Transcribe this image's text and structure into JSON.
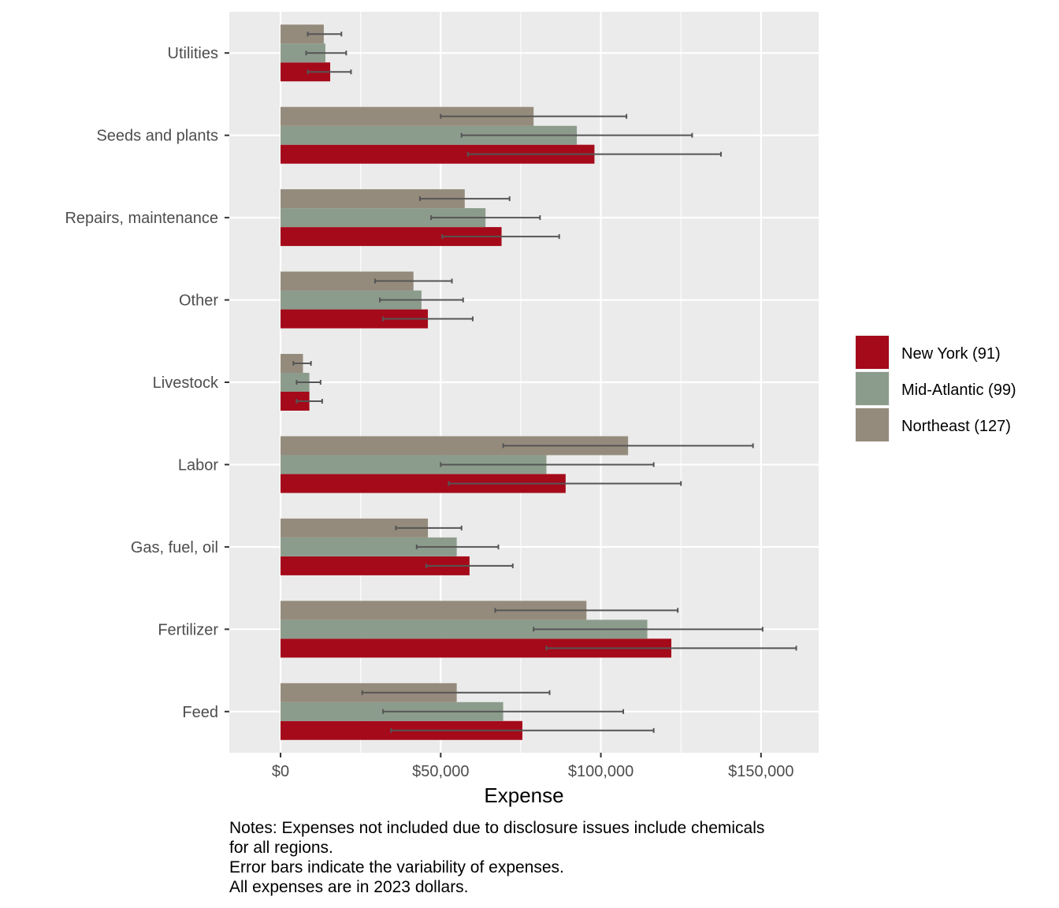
{
  "chart_data": {
    "type": "bar",
    "orientation": "horizontal",
    "xlabel": "Expense",
    "ylabel": "",
    "xlim": [
      -16000,
      168000
    ],
    "xticks": [
      0,
      50000,
      100000,
      150000
    ],
    "xtick_labels": [
      "$0",
      "$50,000",
      "$100,000",
      "$150,000"
    ],
    "grid": true,
    "legend_position": "right",
    "categories": [
      "Feed",
      "Fertilizer",
      "Gas, fuel, oil",
      "Labor",
      "Livestock",
      "Other",
      "Repairs, maintenance",
      "Seeds and plants",
      "Utilities"
    ],
    "series": [
      {
        "name": "New York (91)",
        "color": "#A50A1A",
        "values": [
          75500,
          122000,
          59000,
          89000,
          9000,
          46000,
          69000,
          98000,
          15500
        ],
        "error_low": [
          34500,
          83000,
          45500,
          52500,
          5000,
          32000,
          50500,
          58500,
          8500
        ],
        "error_high": [
          116500,
          161000,
          72500,
          125000,
          13000,
          60000,
          87000,
          137500,
          22000
        ]
      },
      {
        "name": "Mid-Atlantic (99)",
        "color": "#8C9C8C",
        "values": [
          69500,
          114500,
          55000,
          83000,
          9000,
          44000,
          64000,
          92500,
          14000
        ],
        "error_low": [
          32000,
          79000,
          42500,
          50000,
          5000,
          31000,
          47000,
          56500,
          8000
        ],
        "error_high": [
          107000,
          150500,
          68000,
          116500,
          12500,
          57000,
          81000,
          128500,
          20500
        ]
      },
      {
        "name": "Northeast (127)",
        "color": "#958B7C",
        "values": [
          55000,
          95500,
          46000,
          108500,
          7000,
          41500,
          57500,
          79000,
          13500
        ],
        "error_low": [
          25500,
          67000,
          36000,
          69500,
          4000,
          29500,
          43500,
          50000,
          8500
        ],
        "error_high": [
          84000,
          124000,
          56500,
          147500,
          9500,
          53500,
          71500,
          108000,
          19000
        ]
      }
    ],
    "notes": [
      "Notes: Expenses not included due to disclosure issues include chemicals",
      "for all regions.",
      "Error bars indicate the variability of expenses.",
      "All expenses are in 2023 dollars."
    ]
  }
}
